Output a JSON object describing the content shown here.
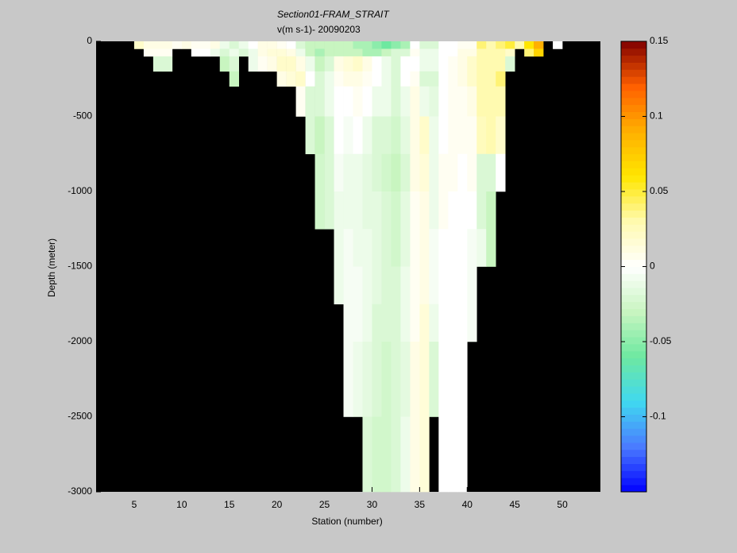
{
  "chart_data": {
    "type": "heatmap",
    "title": "Section01-FRAM_STRAIT",
    "subtitle": "v(m s-1)- 20090203",
    "x_label": "Station (number)",
    "y_label": "Depth (meter)",
    "x": [
      1,
      2,
      3,
      4,
      5,
      6,
      7,
      8,
      9,
      10,
      11,
      12,
      13,
      14,
      15,
      16,
      17,
      18,
      19,
      20,
      21,
      22,
      23,
      24,
      25,
      26,
      27,
      28,
      29,
      30,
      31,
      32,
      33,
      34,
      35,
      36,
      37,
      38,
      39,
      40,
      41,
      42,
      43,
      44,
      45,
      46,
      47,
      48,
      49,
      50,
      51,
      52,
      53
    ],
    "y_edges": [
      0,
      -50,
      -100,
      -200,
      -300,
      -500,
      -750,
      -1000,
      -1250,
      -1500,
      -1750,
      -2000,
      -2500,
      -3000
    ],
    "values": [
      [
        null,
        null,
        null,
        null,
        null,
        null,
        null,
        null,
        null,
        null,
        null,
        null,
        null
      ],
      [
        null,
        null,
        null,
        null,
        null,
        null,
        null,
        null,
        null,
        null,
        null,
        null,
        null
      ],
      [
        null,
        null,
        null,
        null,
        null,
        null,
        null,
        null,
        null,
        null,
        null,
        null,
        null
      ],
      [
        null,
        null,
        null,
        null,
        null,
        null,
        null,
        null,
        null,
        null,
        null,
        null,
        null
      ],
      [
        0.02,
        null,
        null,
        null,
        null,
        null,
        null,
        null,
        null,
        null,
        null,
        null,
        null
      ],
      [
        0.01,
        0.005,
        null,
        null,
        null,
        null,
        null,
        null,
        null,
        null,
        null,
        null,
        null
      ],
      [
        0.01,
        0.005,
        -0.02,
        null,
        null,
        null,
        null,
        null,
        null,
        null,
        null,
        null,
        null
      ],
      [
        0.01,
        0.005,
        -0.02,
        null,
        null,
        null,
        null,
        null,
        null,
        null,
        null,
        null,
        null
      ],
      [
        0.005,
        null,
        null,
        null,
        null,
        null,
        null,
        null,
        null,
        null,
        null,
        null,
        null
      ],
      [
        0.01,
        null,
        null,
        null,
        null,
        null,
        null,
        null,
        null,
        null,
        null,
        null,
        null
      ],
      [
        0.005,
        0,
        null,
        null,
        null,
        null,
        null,
        null,
        null,
        null,
        null,
        null,
        null
      ],
      [
        0.005,
        0,
        null,
        null,
        null,
        null,
        null,
        null,
        null,
        null,
        null,
        null,
        null
      ],
      [
        0.01,
        -0.01,
        null,
        null,
        null,
        null,
        null,
        null,
        null,
        null,
        null,
        null,
        null
      ],
      [
        -0.01,
        -0.02,
        -0.03,
        null,
        null,
        null,
        null,
        null,
        null,
        null,
        null,
        null,
        null
      ],
      [
        -0.02,
        -0.01,
        -0.02,
        -0.03,
        null,
        null,
        null,
        null,
        null,
        null,
        null,
        null,
        null
      ],
      [
        -0.01,
        -0.02,
        null,
        null,
        null,
        null,
        null,
        null,
        null,
        null,
        null,
        null,
        null
      ],
      [
        0,
        -0.01,
        -0.01,
        null,
        null,
        null,
        null,
        null,
        null,
        null,
        null,
        null,
        null
      ],
      [
        0.01,
        0.01,
        0.005,
        null,
        null,
        null,
        null,
        null,
        null,
        null,
        null,
        null,
        null
      ],
      [
        0.01,
        0.015,
        0.01,
        null,
        null,
        null,
        null,
        null,
        null,
        null,
        null,
        null,
        null
      ],
      [
        0.005,
        0.015,
        0.02,
        0.01,
        null,
        null,
        null,
        null,
        null,
        null,
        null,
        null,
        null
      ],
      [
        0,
        0.01,
        0.02,
        0.015,
        null,
        null,
        null,
        null,
        null,
        null,
        null,
        null,
        null
      ],
      [
        -0.02,
        -0.01,
        0.01,
        0.02,
        0.005,
        null,
        null,
        null,
        null,
        null,
        null,
        null,
        null
      ],
      [
        -0.03,
        -0.03,
        -0.01,
        0,
        -0.02,
        -0.02,
        null,
        null,
        null,
        null,
        null,
        null,
        null
      ],
      [
        -0.03,
        -0.04,
        -0.03,
        -0.02,
        -0.02,
        -0.03,
        -0.025,
        -0.025,
        null,
        null,
        null,
        null,
        null
      ],
      [
        -0.03,
        -0.03,
        -0.02,
        -0.01,
        -0.01,
        -0.02,
        -0.02,
        -0.02,
        null,
        null,
        null,
        null,
        null
      ],
      [
        -0.03,
        -0.03,
        0.01,
        0.005,
        0,
        0,
        -0.005,
        -0.01,
        -0.01,
        -0.01,
        null,
        null,
        null
      ],
      [
        -0.03,
        -0.03,
        0.015,
        0.01,
        0,
        -0.005,
        -0.01,
        -0.01,
        -0.005,
        -0.005,
        -0.005,
        -0.005,
        null
      ],
      [
        -0.04,
        -0.03,
        0.02,
        0.01,
        0.005,
        0,
        -0.01,
        -0.01,
        -0.01,
        -0.005,
        -0.005,
        -0.01,
        null
      ],
      [
        -0.04,
        -0.04,
        0.01,
        0.005,
        0,
        -0.01,
        -0.015,
        -0.015,
        -0.01,
        -0.01,
        -0.01,
        -0.015,
        -0.02
      ],
      [
        -0.05,
        -0.04,
        0,
        0,
        -0.01,
        -0.02,
        -0.02,
        -0.015,
        -0.015,
        -0.015,
        -0.02,
        -0.02,
        -0.025
      ],
      [
        -0.06,
        -0.03,
        -0.01,
        -0.01,
        -0.01,
        -0.02,
        -0.025,
        -0.02,
        -0.02,
        -0.02,
        -0.02,
        -0.025,
        -0.025
      ],
      [
        -0.05,
        -0.02,
        -0.02,
        -0.02,
        -0.02,
        -0.025,
        -0.03,
        -0.025,
        -0.025,
        -0.02,
        -0.02,
        -0.02,
        -0.02
      ],
      [
        -0.04,
        -0.02,
        0,
        0,
        -0.01,
        -0.015,
        -0.02,
        -0.015,
        -0.015,
        -0.01,
        -0.01,
        -0.015,
        -0.01
      ],
      [
        0,
        0.005,
        0,
        0.005,
        0.01,
        0.01,
        0.01,
        0.005,
        0.005,
        0.005,
        0.005,
        0.01,
        0.01
      ],
      [
        -0.02,
        -0.01,
        -0.01,
        -0.02,
        -0.01,
        0.02,
        0.015,
        0.01,
        0.01,
        0.01,
        0.015,
        0.015,
        0.015
      ],
      [
        -0.02,
        -0.01,
        -0.01,
        -0.02,
        -0.015,
        -0.01,
        -0.01,
        -0.01,
        -0.005,
        -0.005,
        -0.01,
        -0.02,
        null
      ],
      [
        0,
        0,
        0,
        0,
        0,
        0,
        0.005,
        0.005,
        0,
        0,
        0,
        0,
        0
      ],
      [
        0,
        0,
        0.005,
        0.005,
        0.005,
        0.005,
        0.005,
        0,
        0,
        0,
        0,
        0,
        0
      ],
      [
        0.005,
        0.01,
        0.01,
        0.01,
        0.005,
        0.005,
        0,
        0,
        0,
        0,
        0,
        0,
        0
      ],
      [
        0.005,
        0.01,
        0.02,
        0.02,
        0.01,
        0.005,
        0.005,
        0,
        -0.005,
        -0.005,
        -0.005,
        null,
        null
      ],
      [
        0.04,
        0.03,
        0.03,
        0.03,
        0.03,
        0.025,
        -0.02,
        -0.02,
        -0.01,
        null,
        null,
        null,
        null
      ],
      [
        0.03,
        0.03,
        0.03,
        0.03,
        0.03,
        0.03,
        -0.02,
        -0.03,
        -0.03,
        null,
        null,
        null,
        null
      ],
      [
        0.04,
        0.03,
        0.03,
        0.04,
        0.03,
        0.02,
        0,
        null,
        null,
        null,
        null,
        null,
        null
      ],
      [
        0.05,
        0.02,
        -0.02,
        null,
        null,
        null,
        null,
        null,
        null,
        null,
        null,
        null,
        null
      ],
      [
        0.03,
        null,
        null,
        null,
        null,
        null,
        null,
        null,
        null,
        null,
        null,
        null,
        null
      ],
      [
        0.06,
        0.04,
        null,
        null,
        null,
        null,
        null,
        null,
        null,
        null,
        null,
        null,
        null
      ],
      [
        0.09,
        0.07,
        null,
        null,
        null,
        null,
        null,
        null,
        null,
        null,
        null,
        null,
        null
      ],
      [
        null,
        null,
        null,
        null,
        null,
        null,
        null,
        null,
        null,
        null,
        null,
        null,
        null
      ],
      [
        0,
        null,
        null,
        null,
        null,
        null,
        null,
        null,
        null,
        null,
        null,
        null,
        null
      ],
      [
        null,
        null,
        null,
        null,
        null,
        null,
        null,
        null,
        null,
        null,
        null,
        null,
        null
      ],
      [
        null,
        null,
        null,
        null,
        null,
        null,
        null,
        null,
        null,
        null,
        null,
        null,
        null
      ],
      [
        null,
        null,
        null,
        null,
        null,
        null,
        null,
        null,
        null,
        null,
        null,
        null,
        null
      ],
      [
        null,
        null,
        null,
        null,
        null,
        null,
        null,
        null,
        null,
        null,
        null,
        null,
        null
      ]
    ],
    "xlim": [
      1,
      54
    ],
    "ylim": [
      -3000,
      0
    ],
    "xticks": [
      5,
      10,
      15,
      20,
      25,
      30,
      35,
      40,
      45,
      50
    ],
    "yticks": [
      0,
      -500,
      -1000,
      -1500,
      -2000,
      -2500,
      -3000
    ],
    "clim": [
      -0.15,
      0.15
    ],
    "cticks": [
      0.15,
      0.1,
      0.05,
      0,
      -0.05,
      -0.1
    ],
    "colormap": [
      "#0000ff",
      "#4a7bff",
      "#40d8f0",
      "#6ee8a0",
      "#c8f5c0",
      "#ffffff",
      "#fffab0",
      "#ffe600",
      "#ffb000",
      "#ff6000",
      "#800000"
    ],
    "missing_color": "#000000"
  }
}
